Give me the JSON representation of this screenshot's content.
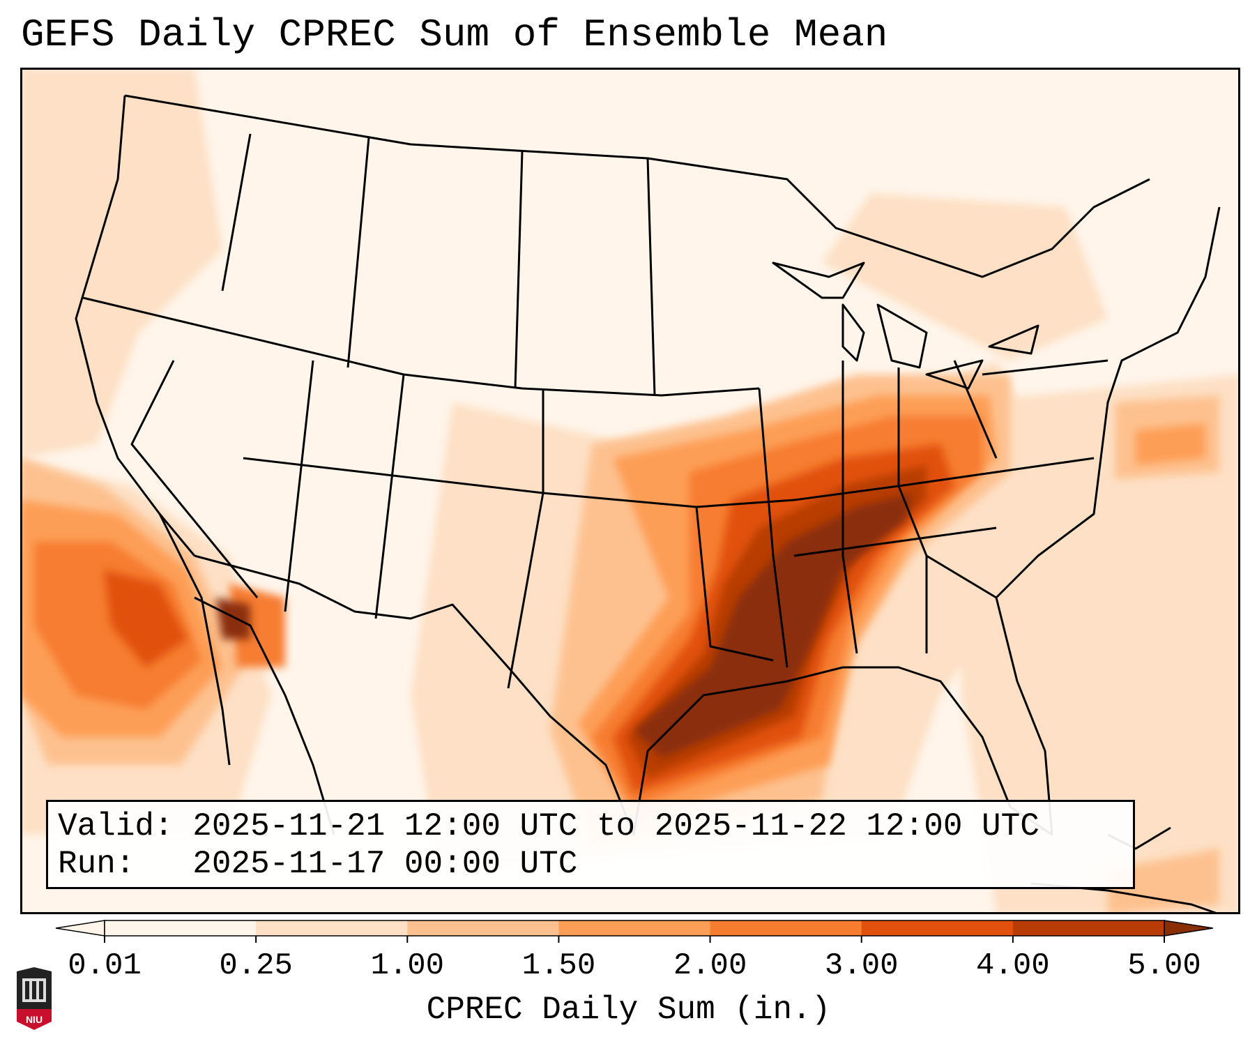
{
  "title": "GEFS Daily CPREC Sum of Ensemble Mean",
  "info": {
    "valid_label": "Valid:",
    "valid_value": "2025-11-21 12:00 UTC to 2025-11-22 12:00 UTC",
    "run_label": "Run:",
    "run_value": "2025-11-17 00:00 UTC"
  },
  "colorbar": {
    "label": "CPREC Daily Sum (in.)",
    "ticks": [
      "0.01",
      "0.25",
      "1.00",
      "1.50",
      "2.00",
      "3.00",
      "4.00",
      "5.00"
    ],
    "colors": [
      "#fff5eb",
      "#fde0c5",
      "#fdc18f",
      "#fd9e56",
      "#f67d30",
      "#e1510d",
      "#b83c06",
      "#8a2e08"
    ],
    "extend": "both"
  },
  "logo": {
    "text": "NIU",
    "color": "#c8102e"
  },
  "map": {
    "projection": "Lambert conformal, CONUS",
    "boundaries": "states and coastlines",
    "features": [
      {
        "name": "Gulf Coast / Lower Mississippi Valley maximum",
        "level": "4.00-5.00+"
      },
      {
        "name": "Tennessee / Ohio Valley band",
        "level": "3.00-5.00"
      },
      {
        "name": "Southern California / Baja offshore band",
        "level": "1.50-4.00"
      },
      {
        "name": "Western Atlantic offshore cell",
        "level": "1.00-2.00"
      }
    ]
  }
}
